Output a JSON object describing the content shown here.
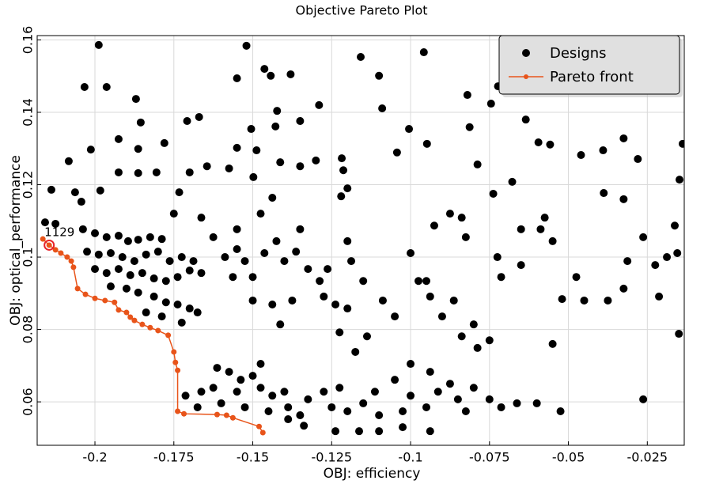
{
  "chart_data": {
    "type": "scatter",
    "title": "Objective Pareto Plot",
    "x_label": "OBJ: efficiency",
    "y_label": "OBJ: optical_performance",
    "xlim": [
      -0.2183,
      -0.0133
    ],
    "ylim": [
      0.048,
      0.1612
    ],
    "xticks": [
      -0.2,
      -0.175,
      -0.15,
      -0.125,
      -0.1,
      -0.075,
      -0.05,
      -0.025
    ],
    "yticks": [
      0.06,
      0.08,
      0.1,
      0.12,
      0.14,
      0.16
    ],
    "grid": true,
    "legend": "upper right",
    "series": [
      {
        "name": "Designs",
        "color": "#000000",
        "x": [
          -0.1988,
          -0.2033,
          -0.1963,
          -0.187,
          -0.1855,
          -0.2013,
          -0.2083,
          -0.1925,
          -0.1863,
          -0.178,
          -0.1708,
          -0.167,
          -0.155,
          -0.152,
          -0.1463,
          -0.1443,
          -0.138,
          -0.1423,
          -0.1505,
          -0.155,
          -0.1488,
          -0.1428,
          -0.135,
          -0.129,
          -0.1158,
          -0.11,
          -0.109,
          -0.0958,
          -0.1005,
          -0.0948,
          -0.0813,
          -0.082,
          -0.0745,
          -0.0723,
          -0.0635,
          -0.0595,
          -0.0558,
          -0.046,
          -0.039,
          -0.0325,
          -0.028,
          -0.0138,
          -0.0148,
          -0.0388,
          -0.0325,
          -0.0678,
          -0.0738,
          -0.0788,
          -0.1043,
          -0.1218,
          -0.1213,
          -0.12,
          -0.122,
          -0.13,
          -0.135,
          -0.1413,
          -0.1498,
          -0.1575,
          -0.1645,
          -0.17,
          -0.1733,
          -0.1805,
          -0.1863,
          -0.1925,
          -0.1983,
          -0.2043,
          -0.2138,
          -0.2063,
          -0.2158,
          -0.2125,
          -0.2038,
          -0.2,
          -0.1963,
          -0.1925,
          -0.1895,
          -0.1863,
          -0.1825,
          -0.1788,
          -0.2025,
          -0.1988,
          -0.195,
          -0.1913,
          -0.1875,
          -0.1838,
          -0.18,
          -0.1763,
          -0.1725,
          -0.1688,
          -0.2,
          -0.1963,
          -0.1925,
          -0.1888,
          -0.185,
          -0.1813,
          -0.1775,
          -0.1738,
          -0.17,
          -0.1663,
          -0.195,
          -0.19,
          -0.1863,
          -0.1813,
          -0.1775,
          -0.1738,
          -0.17,
          -0.1838,
          -0.1788,
          -0.1725,
          -0.1675,
          -0.1625,
          -0.1588,
          -0.155,
          -0.1525,
          -0.1563,
          -0.15,
          -0.1463,
          -0.1425,
          -0.14,
          -0.1363,
          -0.1325,
          -0.1288,
          -0.1263,
          -0.135,
          -0.1475,
          -0.1438,
          -0.155,
          -0.1663,
          -0.175,
          -0.15,
          -0.1438,
          -0.1413,
          -0.1375,
          -0.1275,
          -0.1238,
          -0.12,
          -0.12,
          -0.1188,
          -0.115,
          -0.1225,
          -0.1138,
          -0.1175,
          -0.1088,
          -0.105,
          -0.1,
          -0.0975,
          -0.095,
          -0.0938,
          -0.0875,
          -0.0838,
          -0.0825,
          -0.0925,
          -0.0863,
          -0.09,
          -0.08,
          -0.0838,
          -0.075,
          -0.0788,
          -0.0713,
          -0.065,
          -0.0725,
          -0.0575,
          -0.0588,
          -0.055,
          -0.065,
          -0.0475,
          -0.045,
          -0.052,
          -0.055,
          -0.0375,
          -0.0325,
          -0.0313,
          -0.0263,
          -0.0225,
          -0.0188,
          -0.0155,
          -0.0213,
          -0.0163,
          -0.015,
          -0.0263,
          -0.0525,
          -0.1713,
          -0.1663,
          -0.1613,
          -0.1575,
          -0.1538,
          -0.15,
          -0.1625,
          -0.155,
          -0.1475,
          -0.1438,
          -0.14,
          -0.1675,
          -0.16,
          -0.1525,
          -0.145,
          -0.1388,
          -0.135,
          -0.1325,
          -0.1275,
          -0.1225,
          -0.125,
          -0.12,
          -0.115,
          -0.11,
          -0.1113,
          -0.105,
          -0.1,
          -0.1025,
          -0.095,
          -0.0913,
          -0.0875,
          -0.085,
          -0.08,
          -0.0825,
          -0.075,
          -0.0713,
          -0.0663,
          -0.06,
          -0.0938,
          -0.1,
          -0.1238,
          -0.1163,
          -0.11,
          -0.1025,
          -0.0938,
          -0.1338,
          -0.1388,
          -0.1475
        ],
        "values": [
          0.1586,
          0.147,
          0.147,
          0.1437,
          0.1372,
          0.1297,
          0.1265,
          0.1326,
          0.1299,
          0.1315,
          0.1376,
          0.1387,
          0.1494,
          0.1584,
          0.152,
          0.1501,
          0.1505,
          0.1404,
          0.1354,
          0.1302,
          0.1295,
          0.1361,
          0.1376,
          0.142,
          0.1553,
          0.1501,
          0.1411,
          0.1566,
          0.1354,
          0.1313,
          0.1359,
          0.1448,
          0.1424,
          0.1472,
          0.138,
          0.1317,
          0.1311,
          0.1282,
          0.1295,
          0.1328,
          0.1271,
          0.1313,
          0.1214,
          0.1177,
          0.116,
          0.1208,
          0.1175,
          0.1256,
          0.1289,
          0.1273,
          0.124,
          0.119,
          0.1168,
          0.1267,
          0.1251,
          0.1262,
          0.1221,
          0.1245,
          0.1251,
          0.1234,
          0.1179,
          0.1234,
          0.1232,
          0.1234,
          0.1184,
          0.1153,
          0.1186,
          0.1179,
          0.1096,
          0.1092,
          0.1077,
          0.1066,
          0.1055,
          0.1059,
          0.1044,
          0.1048,
          0.1055,
          0.105,
          0.1015,
          0.1007,
          0.1011,
          0.1,
          0.0989,
          0.1007,
          0.1015,
          0.0989,
          0.1,
          0.0989,
          0.0967,
          0.0956,
          0.0967,
          0.095,
          0.0956,
          0.0941,
          0.0934,
          0.0945,
          0.0963,
          0.0956,
          0.0919,
          0.0913,
          0.0902,
          0.0891,
          0.0875,
          0.0869,
          0.0858,
          0.0847,
          0.0836,
          0.0819,
          0.0847,
          0.1055,
          0.1,
          0.1022,
          0.0989,
          0.0945,
          0.0945,
          0.1011,
          0.1044,
          0.0989,
          0.1015,
          0.0967,
          0.0934,
          0.0967,
          0.1077,
          0.112,
          0.1164,
          0.1077,
          0.1109,
          0.112,
          0.088,
          0.0869,
          0.0814,
          0.088,
          0.0891,
          0.0869,
          0.0858,
          0.1044,
          0.0989,
          0.0934,
          0.0792,
          0.0781,
          0.0738,
          0.088,
          0.0836,
          0.1011,
          0.0934,
          0.0934,
          0.0891,
          0.112,
          0.1109,
          0.1055,
          0.1087,
          0.088,
          0.0836,
          0.0814,
          0.0781,
          0.077,
          0.0749,
          0.0945,
          0.0978,
          0.1,
          0.1109,
          0.1077,
          0.1044,
          0.1077,
          0.0945,
          0.088,
          0.0884,
          0.076,
          0.088,
          0.0913,
          0.0989,
          0.1055,
          0.0978,
          0.1,
          0.1011,
          0.0891,
          0.1087,
          0.0788,
          0.0607,
          0.0574,
          0.0617,
          0.0628,
          0.0694,
          0.0683,
          0.0661,
          0.0672,
          0.0639,
          0.0628,
          0.0639,
          0.0617,
          0.0628,
          0.0585,
          0.0596,
          0.0585,
          0.0574,
          0.0585,
          0.0563,
          0.0607,
          0.0628,
          0.0639,
          0.0585,
          0.0574,
          0.0596,
          0.0563,
          0.0628,
          0.0661,
          0.0617,
          0.0574,
          0.0585,
          0.0628,
          0.065,
          0.0607,
          0.0639,
          0.0574,
          0.0607,
          0.0585,
          0.0596,
          0.0596,
          0.0683,
          0.0705,
          0.0519,
          0.0519,
          0.0519,
          0.053,
          0.0519,
          0.0534,
          0.0552,
          0.0705
        ]
      },
      {
        "name": "Pareto front",
        "color": "#e8541a",
        "line": true,
        "x": [
          -0.2165,
          -0.2145,
          -0.2125,
          -0.2108,
          -0.2088,
          -0.2075,
          -0.2068,
          -0.2055,
          -0.203,
          -0.2,
          -0.1968,
          -0.1938,
          -0.1925,
          -0.19,
          -0.1888,
          -0.1875,
          -0.185,
          -0.1825,
          -0.18,
          -0.1768,
          -0.175,
          -0.1745,
          -0.1738,
          -0.1738,
          -0.1718,
          -0.1613,
          -0.1583,
          -0.1563,
          -0.148,
          -0.1468
        ],
        "values": [
          0.105,
          0.1033,
          0.102,
          0.1011,
          0.1,
          0.0989,
          0.0972,
          0.0913,
          0.0897,
          0.0886,
          0.088,
          0.0875,
          0.0854,
          0.0847,
          0.0834,
          0.0825,
          0.0814,
          0.0805,
          0.0797,
          0.0784,
          0.0738,
          0.0709,
          0.0687,
          0.0574,
          0.0567,
          0.0565,
          0.0563,
          0.0556,
          0.0532,
          0.0515
        ]
      }
    ],
    "annotations": [
      {
        "text": "1129",
        "x": -0.2145,
        "y": 0.1033,
        "color": "#e8232a"
      }
    ]
  }
}
